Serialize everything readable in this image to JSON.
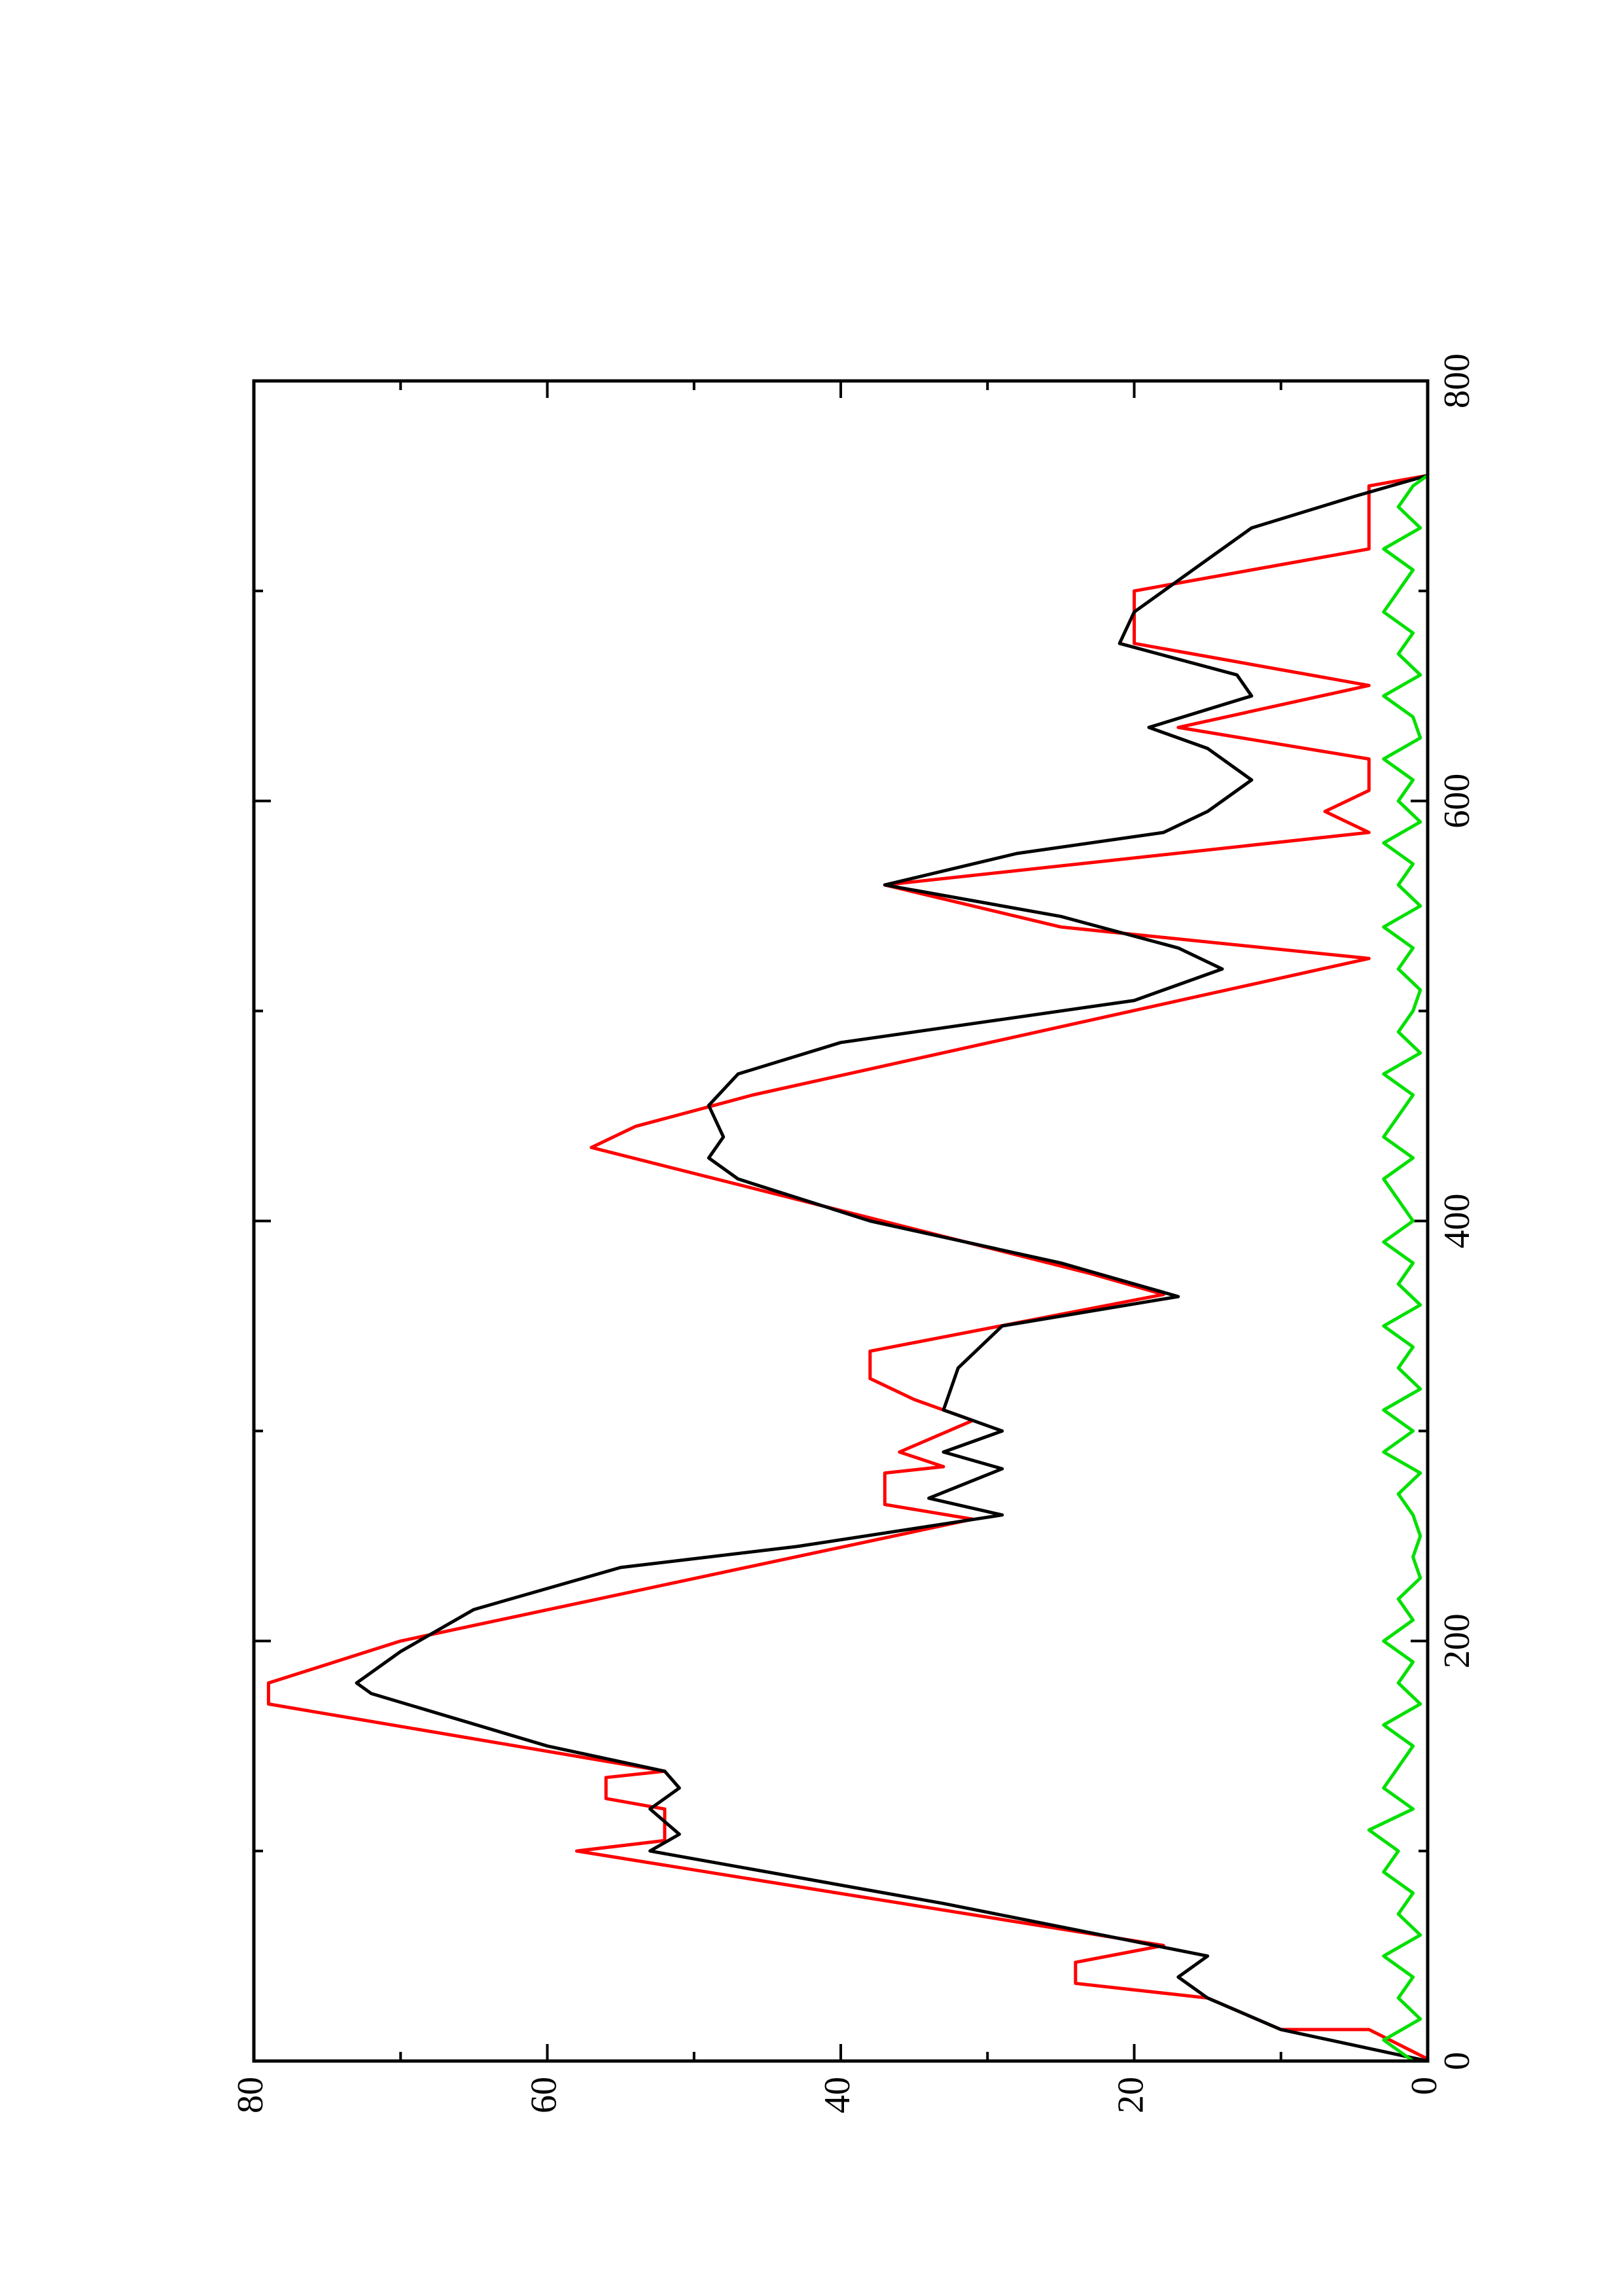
{
  "chart_data": {
    "type": "line",
    "xlim": [
      0,
      800
    ],
    "ylim": [
      0,
      80
    ],
    "xticks": [
      0,
      200,
      400,
      600,
      800
    ],
    "yticks": [
      0,
      20,
      40,
      60,
      80
    ],
    "xminorticks": [
      100,
      300,
      500,
      700
    ],
    "yminorticks": [
      10,
      30,
      50,
      70
    ],
    "series": [
      {
        "color": "#ff0000",
        "x": [
          1,
          15,
          15,
          30,
          30,
          37,
          47,
          55,
          55,
          100,
          105,
          120,
          125,
          135,
          138,
          170,
          180,
          200,
          258,
          265,
          280,
          283,
          290,
          305,
          315,
          325,
          338,
          365,
          375,
          435,
          445,
          460,
          525,
          540,
          560,
          585,
          595,
          605,
          620,
          635,
          655,
          675,
          700,
          720,
          750,
          755
        ],
        "values": [
          0,
          4,
          10,
          15,
          15,
          24,
          24,
          18,
          18,
          58,
          52,
          52,
          56,
          56,
          52,
          79,
          79,
          70,
          31,
          37,
          37,
          33,
          36,
          31,
          35,
          38,
          38,
          18,
          23,
          57,
          54,
          46,
          4,
          25,
          37,
          4,
          7,
          4,
          4,
          17,
          4,
          20,
          20,
          4,
          4,
          0
        ]
      },
      {
        "color": "#000000",
        "x": [
          0,
          15,
          30,
          40,
          50,
          75,
          100,
          108,
          120,
          130,
          138,
          150,
          175,
          180,
          195,
          215,
          235,
          245,
          260,
          268,
          282,
          290,
          300,
          310,
          330,
          350,
          364,
          380,
          400,
          420,
          430,
          440,
          455,
          470,
          485,
          495,
          505,
          520,
          530,
          545,
          560,
          575,
          585,
          595,
          610,
          625,
          635,
          650,
          660,
          675,
          690,
          715,
          730,
          745,
          755
        ],
        "values": [
          0,
          10,
          15,
          17,
          15,
          33,
          53,
          51,
          53,
          51,
          52,
          60,
          72,
          73,
          70,
          65,
          55,
          43,
          29,
          34,
          29,
          33,
          29,
          33,
          32,
          29,
          17,
          25,
          38,
          47,
          49,
          48,
          49,
          47,
          40,
          30,
          20,
          14,
          17,
          25,
          37,
          28,
          18,
          15,
          12,
          15,
          19,
          12,
          13,
          21,
          20,
          15,
          12,
          5,
          0
        ]
      },
      {
        "color": "#00e000",
        "x": [
          0,
          10,
          20,
          30,
          40,
          50,
          60,
          70,
          80,
          90,
          100,
          110,
          120,
          130,
          140,
          150,
          160,
          170,
          180,
          190,
          200,
          210,
          220,
          230,
          240,
          250,
          260,
          270,
          280,
          290,
          300,
          310,
          320,
          330,
          340,
          350,
          360,
          370,
          380,
          390,
          400,
          410,
          420,
          430,
          440,
          450,
          460,
          470,
          480,
          490,
          500,
          510,
          520,
          530,
          540,
          550,
          560,
          570,
          580,
          590,
          600,
          610,
          620,
          630,
          640,
          650,
          660,
          670,
          680,
          690,
          700,
          710,
          720,
          730,
          740,
          750,
          755
        ],
        "values": [
          1,
          3,
          0.5,
          2,
          1,
          3,
          0.5,
          2,
          1,
          3,
          2,
          4,
          1,
          3,
          2,
          1,
          3,
          0.5,
          2,
          1,
          3,
          1,
          2,
          0.5,
          1,
          0.5,
          1,
          2,
          0.5,
          3,
          1,
          3,
          0.5,
          2,
          1,
          3,
          0.5,
          2,
          1,
          3,
          1,
          2,
          3,
          1,
          3,
          2,
          1,
          3,
          0.5,
          2,
          1,
          0.5,
          2,
          1,
          3,
          0.5,
          2,
          1,
          3,
          0.5,
          2,
          1,
          3,
          0.5,
          1,
          3,
          0.5,
          2,
          1,
          3,
          2,
          1,
          3,
          0.5,
          2,
          1,
          0
        ]
      }
    ]
  }
}
